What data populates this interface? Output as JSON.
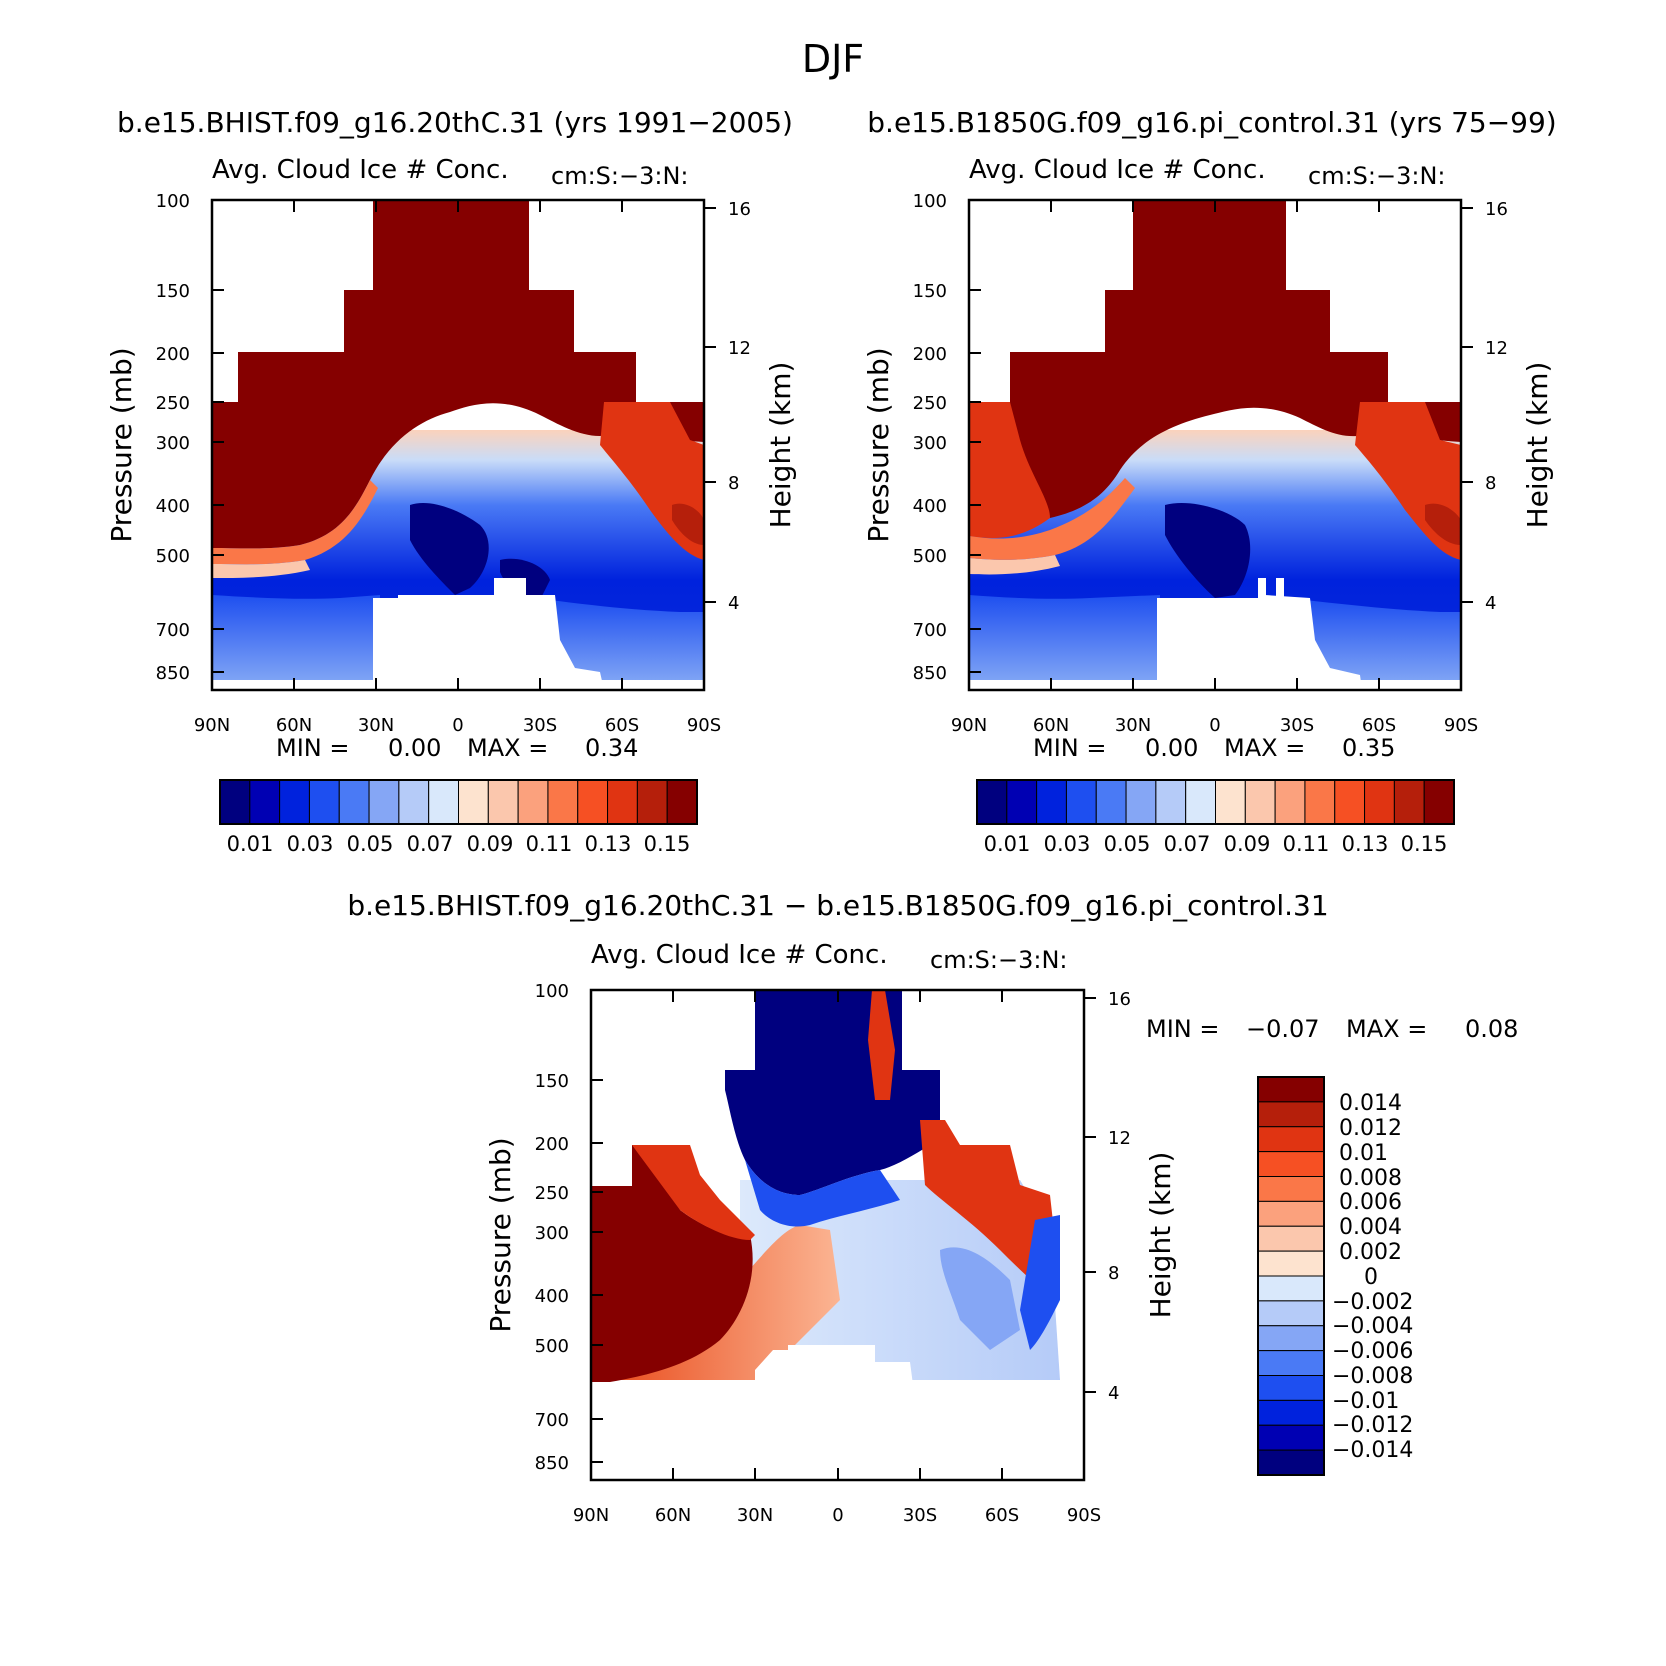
{
  "figure": {
    "title": "DJF"
  },
  "chart_data": [
    {
      "type": "heatmap",
      "panel": "top-left",
      "case_title": "b.e15.BHIST.f09_g16.20thC.31 (yrs 1991-2005)",
      "variable": "Avg. Cloud Ice # Conc.",
      "units": "cm:S:-3:N:",
      "ylabel": "Pressure (mb)",
      "ylabel_right": "Height (km)",
      "x_ticks": [
        "90N",
        "60N",
        "30N",
        "0",
        "30S",
        "60S",
        "90S"
      ],
      "y_ticks": [
        "100",
        "150",
        "200",
        "250",
        "300",
        "400",
        "500",
        "700",
        "850"
      ],
      "y_ticks_right": [
        "16",
        "12",
        "8",
        "4"
      ],
      "min_label": "MIN =",
      "min_value": "0.00",
      "max_label": "MAX =",
      "max_value": "0.34",
      "colorbar_labels": [
        "0.01",
        "0.03",
        "0.05",
        "0.07",
        "0.09",
        "0.11",
        "0.13",
        "0.15"
      ],
      "colorbar_colors": [
        "#00007f",
        "#0000b3",
        "#0022dd",
        "#1e4ff0",
        "#4a7af5",
        "#85a6f5",
        "#b5cbf8",
        "#d9e8fb",
        "#fde3cf",
        "#fbc7ad",
        "#fba17d",
        "#fa7748",
        "#f65023",
        "#e03412",
        "#b51f0b",
        "#850000"
      ]
    },
    {
      "type": "heatmap",
      "panel": "top-right",
      "case_title": "b.e15.B1850G.f09_g16.pi_control.31 (yrs 75-99)",
      "variable": "Avg. Cloud Ice # Conc.",
      "units": "cm:S:-3:N:",
      "ylabel": "Pressure (mb)",
      "ylabel_right": "Height (km)",
      "x_ticks": [
        "90N",
        "60N",
        "30N",
        "0",
        "30S",
        "60S",
        "90S"
      ],
      "y_ticks": [
        "100",
        "150",
        "200",
        "250",
        "300",
        "400",
        "500",
        "700",
        "850"
      ],
      "y_ticks_right": [
        "16",
        "12",
        "8",
        "4"
      ],
      "min_label": "MIN =",
      "min_value": "0.00",
      "max_label": "MAX =",
      "max_value": "0.35",
      "colorbar_labels": [
        "0.01",
        "0.03",
        "0.05",
        "0.07",
        "0.09",
        "0.11",
        "0.13",
        "0.15"
      ],
      "colorbar_colors": [
        "#00007f",
        "#0000b3",
        "#0022dd",
        "#1e4ff0",
        "#4a7af5",
        "#85a6f5",
        "#b5cbf8",
        "#d9e8fb",
        "#fde3cf",
        "#fbc7ad",
        "#fba17d",
        "#fa7748",
        "#f65023",
        "#e03412",
        "#b51f0b",
        "#850000"
      ]
    },
    {
      "type": "heatmap",
      "panel": "bottom",
      "case_title": "b.e15.BHIST.f09_g16.20thC.31 - b.e15.B1850G.f09_g16.pi_control.31",
      "variable": "Avg. Cloud Ice # Conc.",
      "units": "cm:S:-3:N:",
      "ylabel": "Pressure (mb)",
      "ylabel_right": "Height (km)",
      "x_ticks": [
        "90N",
        "60N",
        "30N",
        "0",
        "30S",
        "60S",
        "90S"
      ],
      "y_ticks": [
        "100",
        "150",
        "200",
        "250",
        "300",
        "400",
        "500",
        "700",
        "850"
      ],
      "y_ticks_right": [
        "16",
        "12",
        "8",
        "4"
      ],
      "min_label": "MIN =",
      "min_value": "-0.07",
      "max_label": "MAX =",
      "max_value": "0.08",
      "colorbar_labels": [
        "0.014",
        "0.012",
        "0.01",
        "0.008",
        "0.006",
        "0.004",
        "0.002",
        "0",
        "-0.002",
        "-0.004",
        "-0.006",
        "-0.008",
        "-0.01",
        "-0.012",
        "-0.014"
      ],
      "colorbar_colors": [
        "#850000",
        "#b51f0b",
        "#e03412",
        "#f65023",
        "#fa7748",
        "#fba17d",
        "#fbc7ad",
        "#fde3cf",
        "#d9e8fb",
        "#b5cbf8",
        "#85a6f5",
        "#4a7af5",
        "#1e4ff0",
        "#0022dd",
        "#0000b3",
        "#00007f"
      ]
    }
  ]
}
